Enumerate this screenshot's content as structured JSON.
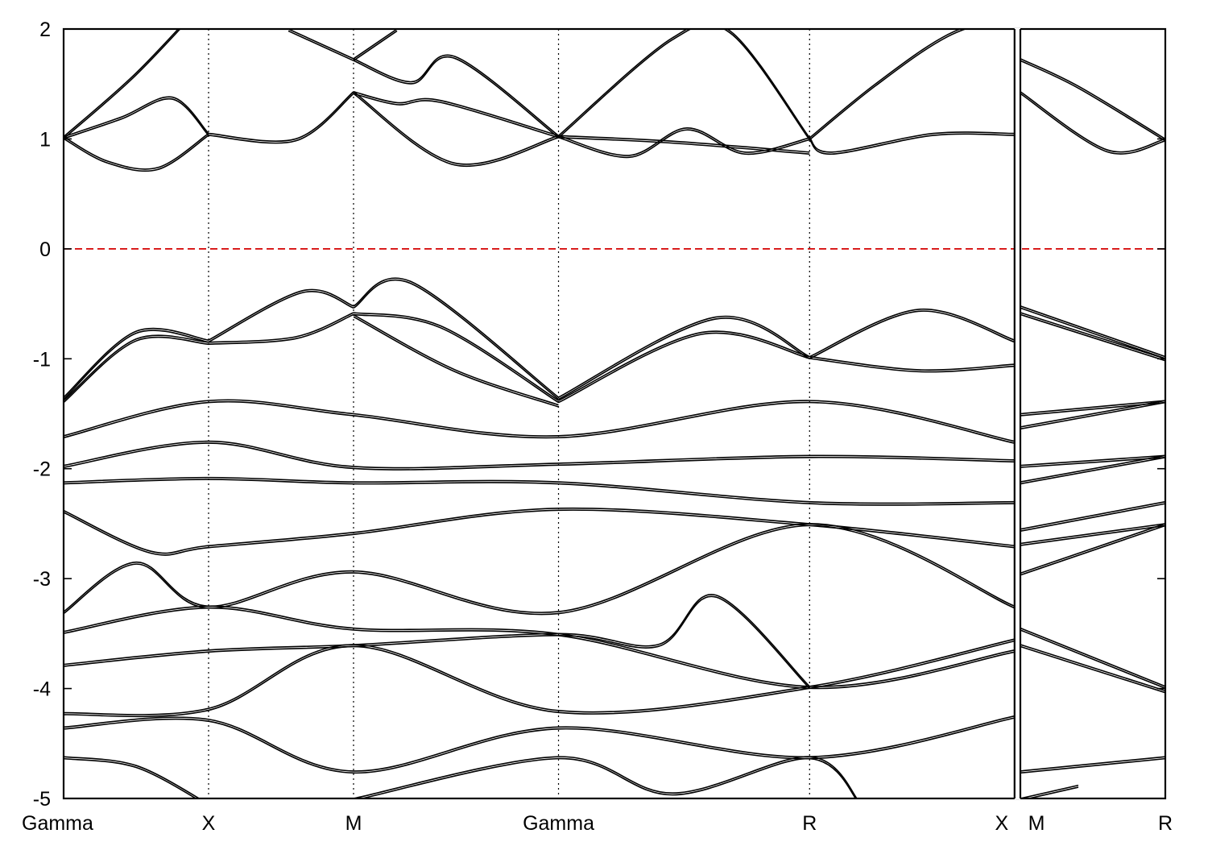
{
  "chart_data": {
    "type": "line",
    "title": "",
    "xlabel": "",
    "ylabel": "",
    "ylim": [
      -5,
      2
    ],
    "yticks": [
      2,
      1,
      0,
      -1,
      -2,
      -3,
      -4,
      -5
    ],
    "ytick_labels": [
      "2",
      "1",
      "0",
      "-1",
      "-2",
      "-3",
      "-4",
      "-5"
    ],
    "xlim": [
      0,
      7.6
    ],
    "kpoints": [
      {
        "label": "Gamma",
        "x": 0
      },
      {
        "label": "X",
        "x": 1
      },
      {
        "label": "M",
        "x": 2
      },
      {
        "label": "Gamma",
        "x": 3.414
      },
      {
        "label": "R",
        "x": 5.146
      },
      {
        "label": "X",
        "x": 6.56
      },
      {
        "label": "M",
        "x": 6.6
      },
      {
        "label": "R",
        "x": 7.6
      }
    ],
    "segment_break": {
      "left": 6.56,
      "right": 6.6
    },
    "grid": false,
    "fermi_level": {
      "y": 0,
      "color": "#d40000",
      "style": "dashed"
    },
    "series": [
      {
        "x": [
          0,
          0.5,
          1.0
        ],
        "y": [
          1.02,
          1.6,
          2.3
        ]
      },
      {
        "x": [
          0,
          0.4,
          0.75,
          1.0
        ],
        "y": [
          1.02,
          1.2,
          1.38,
          1.05
        ]
      },
      {
        "x": [
          0,
          0.3,
          0.65,
          1.0
        ],
        "y": [
          1.02,
          0.8,
          0.74,
          1.05
        ]
      },
      {
        "x": [
          1.0,
          1.6,
          2.0
        ],
        "y": [
          1.05,
          1.0,
          1.43
        ]
      },
      {
        "x": [
          1.55,
          2.0
        ],
        "y": [
          2.0,
          1.73
        ]
      },
      {
        "x": [
          2.0,
          2.4,
          2.7,
          3.414
        ],
        "y": [
          1.73,
          1.52,
          1.75,
          1.03
        ]
      },
      {
        "x": [
          2.0,
          2.3,
          2.6,
          3.414
        ],
        "y": [
          1.43,
          1.33,
          1.35,
          1.03
        ]
      },
      {
        "x": [
          2.0,
          2.7,
          3.414
        ],
        "y": [
          1.43,
          0.78,
          1.03
        ]
      },
      {
        "x": [
          2.0,
          2.3
        ],
        "y": [
          1.73,
          2.0
        ]
      },
      {
        "x": [
          3.414,
          4.2,
          4.6,
          5.146
        ],
        "y": [
          1.03,
          1.92,
          1.98,
          1.01
        ]
      },
      {
        "x": [
          3.414,
          3.9,
          4.3,
          4.7,
          5.146
        ],
        "y": [
          1.03,
          0.85,
          1.1,
          0.88,
          1.01
        ]
      },
      {
        "x": [
          3.414,
          4.2,
          5.146
        ],
        "y": [
          1.03,
          0.98,
          0.88
        ]
      },
      {
        "x": [
          5.146,
          5.6,
          6.1,
          6.56
        ],
        "y": [
          1.01,
          1.5,
          1.95,
          2.15
        ]
      },
      {
        "x": [
          5.146,
          5.3,
          6.0,
          6.56
        ],
        "y": [
          1.01,
          0.88,
          1.05,
          1.05
        ]
      },
      {
        "x": [
          6.6,
          7.0,
          7.6
        ],
        "y": [
          1.73,
          1.48,
          1.0
        ]
      },
      {
        "x": [
          6.6,
          7.2,
          7.6
        ],
        "y": [
          1.43,
          0.9,
          1.0
        ]
      },
      {
        "x": [
          0,
          0.5,
          1.0
        ],
        "y": [
          -1.35,
          -0.75,
          -0.83
        ]
      },
      {
        "x": [
          0,
          0.5,
          1.0
        ],
        "y": [
          -1.38,
          -0.82,
          -0.85
        ]
      },
      {
        "x": [
          1.0,
          1.65,
          2.0
        ],
        "y": [
          -0.83,
          -0.38,
          -0.52
        ]
      },
      {
        "x": [
          1.0,
          1.6,
          2.0
        ],
        "y": [
          -0.85,
          -0.8,
          -0.58
        ]
      },
      {
        "x": [
          2.0,
          2.4,
          3.414
        ],
        "y": [
          -0.52,
          -0.3,
          -1.35
        ]
      },
      {
        "x": [
          2.0,
          2.6,
          3.414
        ],
        "y": [
          -0.58,
          -0.7,
          -1.38
        ]
      },
      {
        "x": [
          2.0,
          2.7,
          3.414
        ],
        "y": [
          -0.6,
          -1.1,
          -1.42
        ]
      },
      {
        "x": [
          3.414,
          4.5,
          5.146
        ],
        "y": [
          -1.35,
          -0.62,
          -0.98
        ]
      },
      {
        "x": [
          3.414,
          4.4,
          5.146
        ],
        "y": [
          -1.38,
          -0.76,
          -0.98
        ]
      },
      {
        "x": [
          5.146,
          5.9,
          6.56
        ],
        "y": [
          -0.98,
          -0.55,
          -0.83
        ]
      },
      {
        "x": [
          5.146,
          5.9,
          6.56
        ],
        "y": [
          -0.98,
          -1.1,
          -1.05
        ]
      },
      {
        "x": [
          6.6,
          7.6
        ],
        "y": [
          -0.52,
          -0.98
        ]
      },
      {
        "x": [
          6.6,
          7.6
        ],
        "y": [
          -0.58,
          -1.0
        ]
      },
      {
        "x": [
          0,
          1.0,
          2.0,
          3.414,
          5.146,
          6.56
        ],
        "y": [
          -1.7,
          -1.38,
          -1.5,
          -1.7,
          -1.38,
          -1.75
        ]
      },
      {
        "x": [
          0,
          1.0,
          2.0,
          3.414,
          5.146,
          6.56
        ],
        "y": [
          -1.97,
          -1.75,
          -1.98,
          -1.95,
          -1.88,
          -1.92
        ]
      },
      {
        "x": [
          0,
          1.0,
          2.0,
          3.414,
          5.146,
          6.56
        ],
        "y": [
          -2.12,
          -2.08,
          -2.12,
          -2.12,
          -2.3,
          -2.3
        ]
      },
      {
        "x": [
          0,
          0.6,
          1.0,
          2.0,
          3.414,
          5.146,
          6.56
        ],
        "y": [
          -2.38,
          -2.75,
          -2.7,
          -2.58,
          -2.36,
          -2.5,
          -2.7
        ]
      },
      {
        "x": [
          0,
          0.5,
          1.0,
          2.0,
          3.414,
          5.146,
          6.56
        ],
        "y": [
          -3.3,
          -2.85,
          -3.25,
          -2.93,
          -3.3,
          -2.5,
          -3.25
        ]
      },
      {
        "x": [
          0,
          1.0,
          2.0,
          3.414,
          5.146,
          6.56
        ],
        "y": [
          -3.48,
          -3.25,
          -3.45,
          -3.5,
          -3.98,
          -3.65
        ]
      },
      {
        "x": [
          0,
          1.0,
          2.0,
          3.414,
          4.1,
          4.5,
          5.146
        ],
        "y": [
          -3.78,
          -3.65,
          -3.6,
          -3.5,
          -3.6,
          -3.15,
          -3.98
        ]
      },
      {
        "x": [
          0,
          1.0,
          2.0,
          3.414,
          5.146,
          6.56
        ],
        "y": [
          -4.22,
          -4.18,
          -3.6,
          -4.2,
          -3.98,
          -3.55
        ]
      },
      {
        "x": [
          0,
          1.0,
          2.0,
          3.414,
          5.146,
          6.56
        ],
        "y": [
          -4.35,
          -4.28,
          -4.75,
          -4.35,
          -4.62,
          -4.25
        ]
      },
      {
        "x": [
          0,
          0.5,
          1.0
        ],
        "y": [
          -4.62,
          -4.7,
          -5.05
        ]
      },
      {
        "x": [
          2.0,
          3.414,
          4.2,
          5.146,
          5.5
        ],
        "y": [
          -5.0,
          -4.62,
          -4.95,
          -4.62,
          -5.05
        ]
      },
      {
        "x": [
          6.6,
          7.6
        ],
        "y": [
          -1.5,
          -1.38
        ]
      },
      {
        "x": [
          6.6,
          7.6
        ],
        "y": [
          -1.62,
          -1.38
        ]
      },
      {
        "x": [
          6.6,
          7.6
        ],
        "y": [
          -1.97,
          -1.88
        ]
      },
      {
        "x": [
          6.6,
          7.6
        ],
        "y": [
          -2.12,
          -1.88
        ]
      },
      {
        "x": [
          6.6,
          7.6
        ],
        "y": [
          -2.55,
          -2.3
        ]
      },
      {
        "x": [
          6.6,
          7.6
        ],
        "y": [
          -2.68,
          -2.5
        ]
      },
      {
        "x": [
          6.6,
          7.6
        ],
        "y": [
          -2.95,
          -2.5
        ]
      },
      {
        "x": [
          6.6,
          7.6
        ],
        "y": [
          -3.45,
          -3.98
        ]
      },
      {
        "x": [
          6.6,
          7.6
        ],
        "y": [
          -3.6,
          -4.02
        ]
      },
      {
        "x": [
          6.6,
          7.6
        ],
        "y": [
          -4.75,
          -4.62
        ]
      },
      {
        "x": [
          6.6,
          7.0
        ],
        "y": [
          -5.0,
          -4.88
        ]
      }
    ]
  }
}
